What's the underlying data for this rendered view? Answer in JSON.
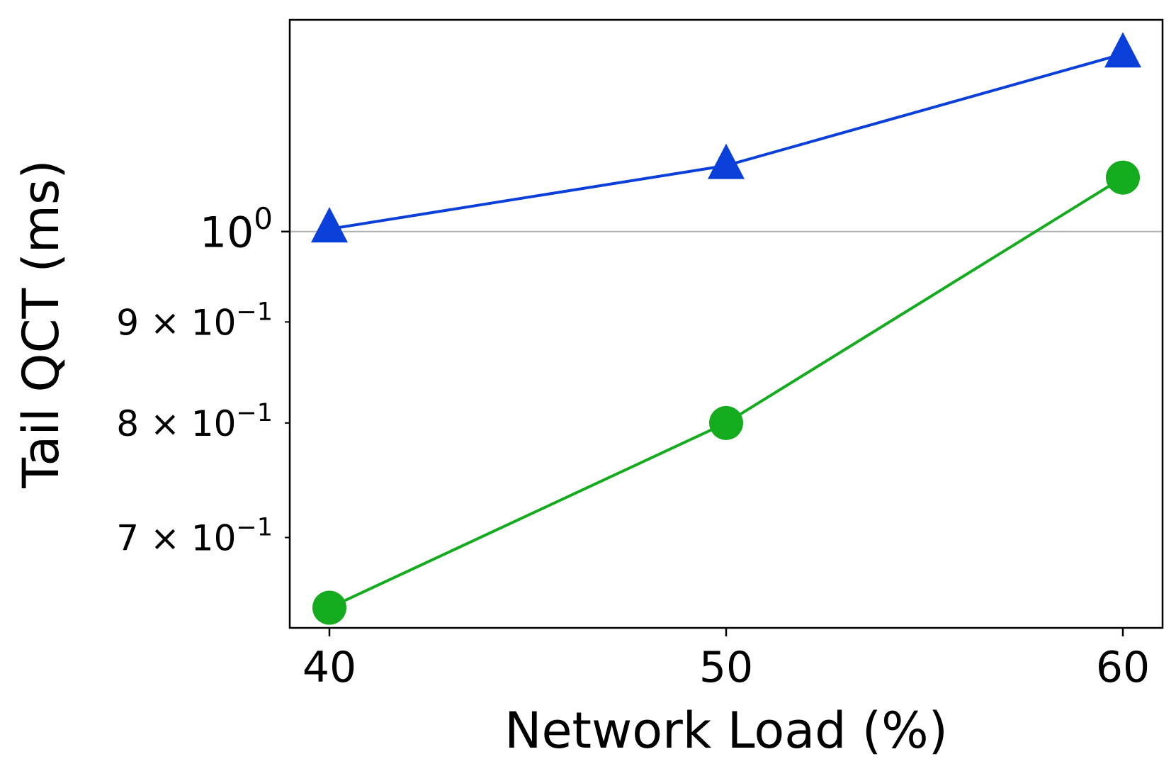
{
  "chart_data": {
    "type": "line",
    "xlabel": "Network Load (%)",
    "ylabel": "Tail QCT (ms)",
    "x": [
      40,
      50,
      60
    ],
    "xlim": [
      39,
      61
    ],
    "ylim": [
      0.63,
      1.28
    ],
    "yscale": "log",
    "grid": "major-y",
    "legend": "none",
    "x_ticks": [
      {
        "value": 40,
        "label": "40"
      },
      {
        "value": 50,
        "label": "50"
      },
      {
        "value": 60,
        "label": "60"
      }
    ],
    "y_ticks": [
      {
        "value": 1.0,
        "mantissa": "",
        "base": "10",
        "exponent": "0"
      },
      {
        "value": 0.9,
        "mantissa": "9",
        "base": "10",
        "exponent": "−1"
      },
      {
        "value": 0.8,
        "mantissa": "8",
        "base": "10",
        "exponent": "−1"
      },
      {
        "value": 0.7,
        "mantissa": "7",
        "base": "10",
        "exponent": "−1"
      }
    ],
    "series": [
      {
        "values": [
          1.003,
          1.08,
          1.23
        ],
        "color": "#0a3fd9",
        "marker": "triangle"
      },
      {
        "values": [
          0.645,
          0.8,
          1.065
        ],
        "color": "#14ab1e",
        "marker": "circle"
      }
    ]
  }
}
